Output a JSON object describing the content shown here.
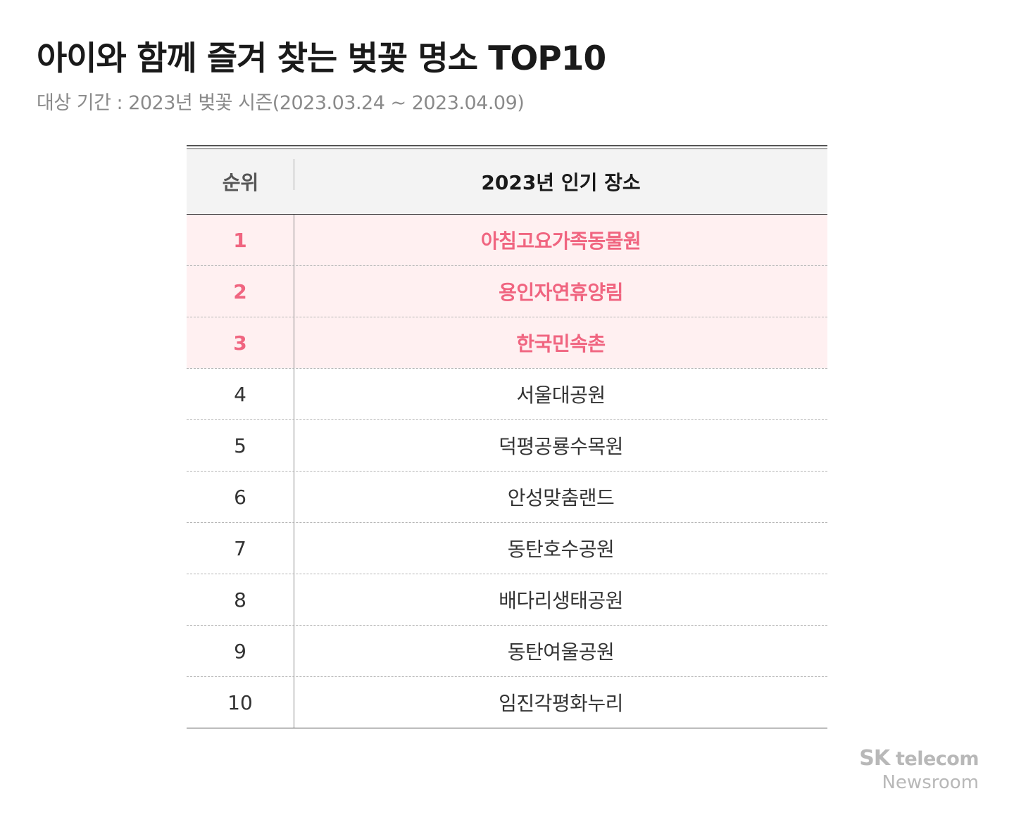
{
  "title": "아이와 함께 즐겨 찾는 벚꽃 명소 TOP10",
  "subtitle": "대상 기간 : 2023년 벚꽃 시즌(2023.03.24 ~ 2023.04.09)",
  "table": {
    "header": {
      "rank": "순위",
      "place": "2023년 인기 장소"
    },
    "highlight_color": "#f06580",
    "highlight_bg": "#fff0f1",
    "rows": [
      {
        "rank": "1",
        "place": "아침고요가족동물원",
        "highlight": true
      },
      {
        "rank": "2",
        "place": "용인자연휴양림",
        "highlight": true
      },
      {
        "rank": "3",
        "place": "한국민속촌",
        "highlight": true
      },
      {
        "rank": "4",
        "place": "서울대공원",
        "highlight": false
      },
      {
        "rank": "5",
        "place": "덕평공룡수목원",
        "highlight": false
      },
      {
        "rank": "6",
        "place": "안성맞춤랜드",
        "highlight": false
      },
      {
        "rank": "7",
        "place": "동탄호수공원",
        "highlight": false
      },
      {
        "rank": "8",
        "place": "배다리생태공원",
        "highlight": false
      },
      {
        "rank": "9",
        "place": "동탄여울공원",
        "highlight": false
      },
      {
        "rank": "10",
        "place": "임진각평화누리",
        "highlight": false
      }
    ]
  },
  "brand": {
    "sk": "SK",
    "telecom": "telecom",
    "newsroom": "Newsroom"
  }
}
